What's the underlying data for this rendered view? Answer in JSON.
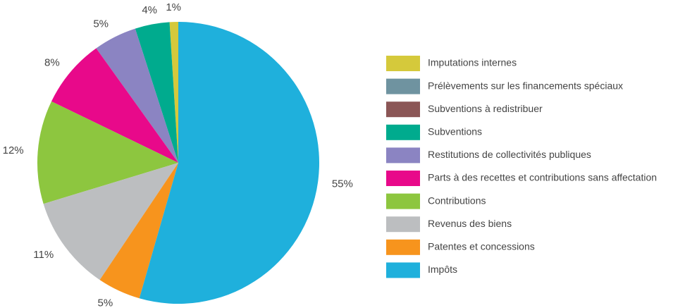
{
  "chart_data": {
    "type": "pie",
    "categories": [
      "Imputations internes",
      "Prélèvements sur les financements spéciaux",
      "Subventions à redistribuer",
      "Subventions",
      "Restitutions de collectivités publiques",
      "Parts à des recettes et contributions sans affectation",
      "Contributions",
      "Revenus des biens",
      "Patentes et concessions",
      "Impôts"
    ],
    "values": [
      1,
      0,
      0,
      4,
      5,
      8,
      12,
      11,
      5,
      55
    ],
    "value_labels": [
      "1%",
      null,
      null,
      "4%",
      "5%",
      "8%",
      "12%",
      "11%",
      "5%",
      "55%"
    ],
    "colors": [
      "#d5c93b",
      "#6f93a0",
      "#8b5656",
      "#00ab8e",
      "#8b84c2",
      "#e8098a",
      "#8dc63f",
      "#bcbec0",
      "#f7941d",
      "#1fb0dc"
    ],
    "legend": "right"
  }
}
